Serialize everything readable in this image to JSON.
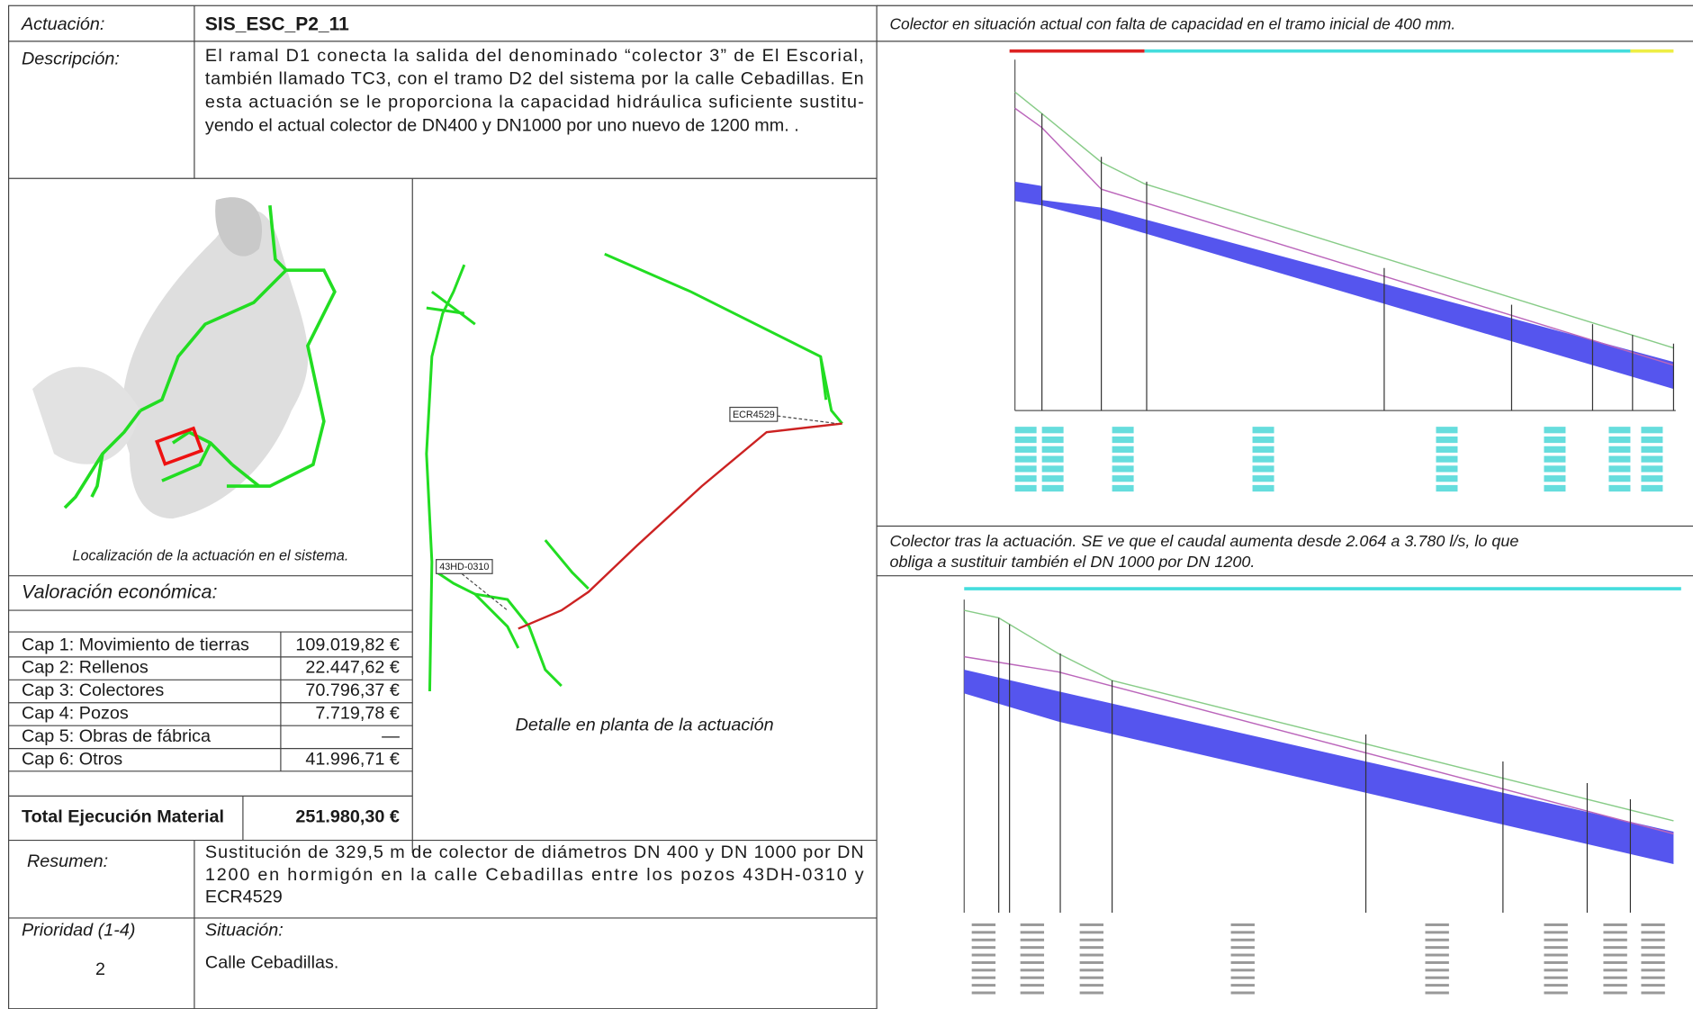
{
  "header": {
    "label": "Actuación:",
    "code": "SIS_ESC_P2_11"
  },
  "description": {
    "label": "Descripción:",
    "lines": [
      "El ramal D1 conecta la salida del denominado “colector 3” de El Escorial,",
      "también llamado TC3, con el tramo D2 del sistema por la calle Cebadillas. En",
      "esta actuación se le proporciona la capacidad hidráulica suficiente sustitu-",
      "yendo el actual colector de DN400 y DN1000 por uno nuevo de 1200 mm. ."
    ]
  },
  "maps": {
    "location_caption": "Localización de la actuación en el sistema.",
    "detail_caption": "Detalle en planta de la actuación",
    "labels": [
      "ECR4529",
      "43HD-0310"
    ]
  },
  "valuation": {
    "title": "Valoración económica:",
    "rows": [
      [
        "Cap 1: Movimiento de tierras",
        "109.019,82 €"
      ],
      [
        "Cap 2: Rellenos",
        "22.447,62 €"
      ],
      [
        "Cap 3: Colectores",
        "70.796,37 €"
      ],
      [
        "Cap 4: Pozos",
        "7.719,78 €"
      ],
      [
        "Cap 5: Obras de fábrica",
        "—"
      ],
      [
        "Cap 6: Otros",
        "41.996,71 €"
      ]
    ],
    "total_label": "Total Ejecución Material",
    "total_value": "251.980,30 €"
  },
  "summary": {
    "label": "Resumen:",
    "lines": [
      "Sustitución de 329,5 m de colector de diámetros DN 400 y DN 1000 por DN",
      "1200 en hormigón en la calle Cebadillas entre los pozos 43DH-0310 y",
      "ECR4529"
    ]
  },
  "priority": {
    "label": "Prioridad (1-4)",
    "value": "2"
  },
  "situation": {
    "label": "Situación:",
    "value": "Calle Cebadillas."
  },
  "profiles": {
    "before_caption": "Colector en situación actual con falta de capacidad en el tramo inicial de 400 mm.",
    "after_caption": [
      "Colector tras la actuación. SE ve que el caudal aumenta desde 2.064  a 3.780 l/s, lo que",
      "obliga a sustituir también el DN 1000 por DN 1200."
    ]
  }
}
